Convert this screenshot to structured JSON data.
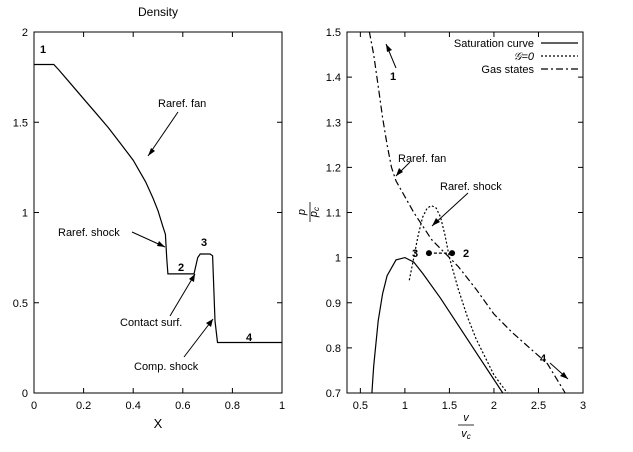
{
  "chart_data": [
    {
      "type": "line",
      "title": "Density",
      "xlabel": "X",
      "ylabel": "",
      "xlim": [
        0,
        1
      ],
      "ylim": [
        0,
        2
      ],
      "xticks": [
        "0",
        "0.2",
        "0.4",
        "0.6",
        "0.8",
        "1"
      ],
      "yticks": [
        "0",
        "0.5",
        "1",
        "1.5",
        "2"
      ],
      "grid": false,
      "series": [
        {
          "x": [
            0.0,
            0.08,
            0.1,
            0.15,
            0.2,
            0.25,
            0.3,
            0.35,
            0.4,
            0.45,
            0.48,
            0.5,
            0.52,
            0.53,
            0.535,
            0.54,
            0.55,
            0.6,
            0.645,
            0.66,
            0.67,
            0.7,
            0.71,
            0.72,
            0.73,
            0.74,
            0.8,
            1.0
          ],
          "y": [
            1.82,
            1.82,
            1.79,
            1.71,
            1.63,
            1.55,
            1.47,
            1.38,
            1.29,
            1.17,
            1.08,
            1.01,
            0.92,
            0.88,
            0.75,
            0.66,
            0.66,
            0.66,
            0.66,
            0.75,
            0.77,
            0.77,
            0.77,
            0.76,
            0.4,
            0.28,
            0.28,
            0.28
          ]
        }
      ],
      "annotations": [
        {
          "text": "Raref. fan",
          "x": 0.48,
          "y": 1.55
        },
        {
          "text": "Raref. shock",
          "x": 0.1,
          "y": 0.88
        },
        {
          "text": "Contact surf.",
          "x": 0.36,
          "y": 0.38
        },
        {
          "text": "Comp. shock",
          "x": 0.4,
          "y": 0.14
        },
        {
          "text": "1",
          "x": 0.04,
          "y": 1.87
        },
        {
          "text": "2",
          "x": 0.59,
          "y": 0.7
        },
        {
          "text": "3",
          "x": 0.69,
          "y": 0.8
        },
        {
          "text": "4",
          "x": 0.86,
          "y": 0.33
        }
      ]
    },
    {
      "type": "line",
      "title": "",
      "xlabel": "v / v_c",
      "ylabel": "p / p_c",
      "xlim": [
        0.35,
        3.0
      ],
      "ylim": [
        0.7,
        1.5
      ],
      "xticks": [
        "0.5",
        "1",
        "1.5",
        "2",
        "2.5",
        "3"
      ],
      "yticks": [
        "0.7",
        "0.8",
        "0.9",
        "1",
        "1.1",
        "1.2",
        "1.3",
        "1.4",
        "1.5"
      ],
      "grid": false,
      "legend": "top-right",
      "series": [
        {
          "name": "Saturation curve",
          "x": [
            0.63,
            0.65,
            0.7,
            0.75,
            0.8,
            0.9,
            1.0,
            1.1,
            1.2,
            1.4,
            1.6,
            1.8,
            2.0,
            2.1
          ],
          "y": [
            0.7,
            0.76,
            0.86,
            0.92,
            0.96,
            0.995,
            1.0,
            0.99,
            0.965,
            0.91,
            0.85,
            0.79,
            0.73,
            0.7
          ]
        },
        {
          "name": "𝒢=0",
          "x": [
            1.05,
            1.1,
            1.15,
            1.2,
            1.25,
            1.3,
            1.35,
            1.4,
            1.45,
            1.5,
            1.6,
            1.7,
            1.8,
            2.0,
            2.15
          ],
          "y": [
            0.95,
            1.0,
            1.05,
            1.09,
            1.11,
            1.115,
            1.11,
            1.09,
            1.05,
            1.0,
            0.93,
            0.87,
            0.82,
            0.74,
            0.7
          ]
        },
        {
          "name": "Gas states",
          "x": [
            0.6,
            0.65,
            0.7,
            0.75,
            0.8,
            0.85,
            0.9,
            1.0,
            1.1,
            1.2,
            1.3,
            1.4,
            1.5,
            1.6,
            1.8,
            2.0,
            2.2,
            2.4,
            2.6,
            2.8
          ],
          "y": [
            1.55,
            1.45,
            1.38,
            1.31,
            1.25,
            1.2,
            1.17,
            1.135,
            1.1,
            1.07,
            1.04,
            1.02,
            1.0,
            0.98,
            0.93,
            0.875,
            0.835,
            0.8,
            0.765,
            0.7
          ]
        },
        {
          "name": "",
          "x": [
            1.27,
            1.53
          ],
          "y": [
            1.01,
            1.01
          ]
        }
      ],
      "annotations": [
        {
          "text": "Raref. fan",
          "x": 1.0,
          "y": 1.2
        },
        {
          "text": "Raref. shock",
          "x": 1.35,
          "y": 1.17
        },
        {
          "text": "1",
          "x": 0.95,
          "y": 1.42
        },
        {
          "text": "2",
          "x": 1.62,
          "y": 1.01
        },
        {
          "text": "3",
          "x": 1.13,
          "y": 1.01
        },
        {
          "text": "4",
          "x": 2.52,
          "y": 0.77
        }
      ]
    }
  ]
}
